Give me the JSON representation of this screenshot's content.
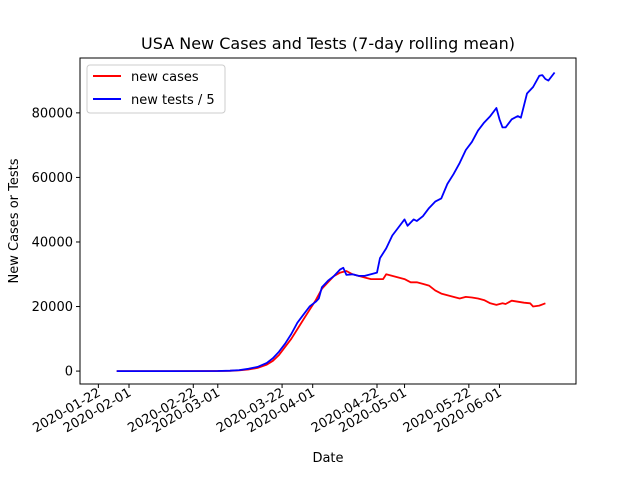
{
  "chart_data": {
    "type": "line",
    "title": "USA New Cases and Tests (7-day rolling mean)",
    "xlabel": "Date",
    "ylabel": "New Cases or Tests",
    "x_start": "2020-01-22",
    "xlim": [
      "2020-01-16",
      "2020-06-26"
    ],
    "ylim": [
      -4000,
      97000
    ],
    "x_ticks": [
      "2020-01-22",
      "2020-02-01",
      "2020-02-22",
      "2020-03-01",
      "2020-03-22",
      "2020-04-01",
      "2020-04-22",
      "2020-05-01",
      "2020-05-22",
      "2020-06-01"
    ],
    "y_ticks": [
      0,
      20000,
      40000,
      60000,
      80000
    ],
    "y_tick_labels": [
      "0",
      "20000",
      "40000",
      "60000",
      "80000"
    ],
    "grid": false,
    "legend_position": "top-left",
    "series": [
      {
        "name": "new cases",
        "color": "#ff0000",
        "points": [
          [
            "2020-01-28",
            0
          ],
          [
            "2020-02-15",
            0
          ],
          [
            "2020-03-01",
            20
          ],
          [
            "2020-03-05",
            100
          ],
          [
            "2020-03-08",
            250
          ],
          [
            "2020-03-11",
            500
          ],
          [
            "2020-03-14",
            1000
          ],
          [
            "2020-03-17",
            2000
          ],
          [
            "2020-03-19",
            3200
          ],
          [
            "2020-03-21",
            5000
          ],
          [
            "2020-03-23",
            7500
          ],
          [
            "2020-03-25",
            10000
          ],
          [
            "2020-03-27",
            13000
          ],
          [
            "2020-03-29",
            16000
          ],
          [
            "2020-03-31",
            19000
          ],
          [
            "2020-04-02",
            22000
          ],
          [
            "2020-04-04",
            25500
          ],
          [
            "2020-04-06",
            27500
          ],
          [
            "2020-04-08",
            29500
          ],
          [
            "2020-04-10",
            30500
          ],
          [
            "2020-04-12",
            31000
          ],
          [
            "2020-04-14",
            30000
          ],
          [
            "2020-04-16",
            29500
          ],
          [
            "2020-04-18",
            29000
          ],
          [
            "2020-04-20",
            28500
          ],
          [
            "2020-04-22",
            28500
          ],
          [
            "2020-04-24",
            28500
          ],
          [
            "2020-04-25",
            30000
          ],
          [
            "2020-04-27",
            29500
          ],
          [
            "2020-04-29",
            29000
          ],
          [
            "2020-05-01",
            28500
          ],
          [
            "2020-05-03",
            27500
          ],
          [
            "2020-05-05",
            27500
          ],
          [
            "2020-05-07",
            27000
          ],
          [
            "2020-05-09",
            26500
          ],
          [
            "2020-05-11",
            25000
          ],
          [
            "2020-05-13",
            24000
          ],
          [
            "2020-05-15",
            23500
          ],
          [
            "2020-05-17",
            23000
          ],
          [
            "2020-05-19",
            22500
          ],
          [
            "2020-05-21",
            23000
          ],
          [
            "2020-05-23",
            22800
          ],
          [
            "2020-05-25",
            22500
          ],
          [
            "2020-05-27",
            22000
          ],
          [
            "2020-05-29",
            21000
          ],
          [
            "2020-05-31",
            20500
          ],
          [
            "2020-06-02",
            21000
          ],
          [
            "2020-06-03",
            20800
          ],
          [
            "2020-06-05",
            21800
          ],
          [
            "2020-06-07",
            21500
          ],
          [
            "2020-06-09",
            21200
          ],
          [
            "2020-06-11",
            21000
          ],
          [
            "2020-06-12",
            20000
          ],
          [
            "2020-06-14",
            20300
          ],
          [
            "2020-06-16",
            21000
          ]
        ]
      },
      {
        "name": "new tests / 5",
        "color": "#0000ff",
        "points": [
          [
            "2020-01-28",
            0
          ],
          [
            "2020-02-15",
            0
          ],
          [
            "2020-03-01",
            20
          ],
          [
            "2020-03-05",
            120
          ],
          [
            "2020-03-08",
            300
          ],
          [
            "2020-03-11",
            700
          ],
          [
            "2020-03-14",
            1300
          ],
          [
            "2020-03-17",
            2500
          ],
          [
            "2020-03-19",
            4000
          ],
          [
            "2020-03-21",
            6000
          ],
          [
            "2020-03-23",
            8500
          ],
          [
            "2020-03-25",
            11500
          ],
          [
            "2020-03-27",
            15000
          ],
          [
            "2020-03-29",
            17500
          ],
          [
            "2020-03-31",
            20000
          ],
          [
            "2020-04-02",
            21500
          ],
          [
            "2020-04-03",
            22500
          ],
          [
            "2020-04-04",
            26000
          ],
          [
            "2020-04-06",
            28000
          ],
          [
            "2020-04-08",
            29500
          ],
          [
            "2020-04-10",
            31500
          ],
          [
            "2020-04-11",
            32000
          ],
          [
            "2020-04-12",
            29800
          ],
          [
            "2020-04-14",
            30000
          ],
          [
            "2020-04-16",
            29500
          ],
          [
            "2020-04-18",
            29500
          ],
          [
            "2020-04-20",
            30000
          ],
          [
            "2020-04-22",
            30500
          ],
          [
            "2020-04-23",
            35000
          ],
          [
            "2020-04-25",
            38000
          ],
          [
            "2020-04-27",
            42000
          ],
          [
            "2020-04-29",
            44500
          ],
          [
            "2020-05-01",
            47000
          ],
          [
            "2020-05-02",
            45000
          ],
          [
            "2020-05-04",
            47000
          ],
          [
            "2020-05-05",
            46500
          ],
          [
            "2020-05-07",
            48000
          ],
          [
            "2020-05-09",
            50500
          ],
          [
            "2020-05-11",
            52500
          ],
          [
            "2020-05-13",
            53500
          ],
          [
            "2020-05-15",
            58000
          ],
          [
            "2020-05-17",
            61000
          ],
          [
            "2020-05-19",
            64500
          ],
          [
            "2020-05-21",
            68500
          ],
          [
            "2020-05-23",
            71000
          ],
          [
            "2020-05-25",
            74500
          ],
          [
            "2020-05-27",
            77000
          ],
          [
            "2020-05-29",
            79000
          ],
          [
            "2020-05-31",
            81500
          ],
          [
            "2020-06-01",
            78000
          ],
          [
            "2020-06-02",
            75500
          ],
          [
            "2020-06-03",
            75500
          ],
          [
            "2020-06-05",
            78000
          ],
          [
            "2020-06-07",
            79000
          ],
          [
            "2020-06-08",
            78500
          ],
          [
            "2020-06-10",
            86000
          ],
          [
            "2020-06-12",
            88000
          ],
          [
            "2020-06-14",
            91500
          ],
          [
            "2020-06-15",
            91700
          ],
          [
            "2020-06-16",
            90500
          ],
          [
            "2020-06-17",
            90000
          ],
          [
            "2020-06-19",
            92500
          ]
        ]
      }
    ]
  }
}
